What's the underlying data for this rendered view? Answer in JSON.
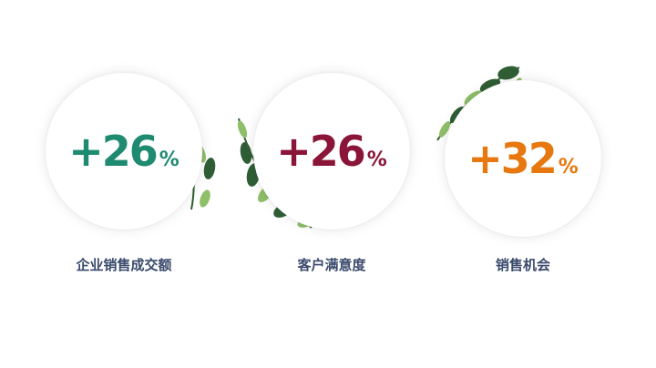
{
  "stats": [
    {
      "value": "+26",
      "unit": "%",
      "label": "企业销售成交额",
      "color": "#1e8a70"
    },
    {
      "value": "+26",
      "unit": "%",
      "label": "客户满意度",
      "color": "#8a1538"
    },
    {
      "value": "+32",
      "unit": "%",
      "label": "销售机会",
      "color": "#e6780f"
    }
  ],
  "decor": {
    "leaf_dark": "#2f5e35",
    "leaf_light": "#8fbf6a",
    "leaf_icon": "leaf-branch-icon"
  }
}
